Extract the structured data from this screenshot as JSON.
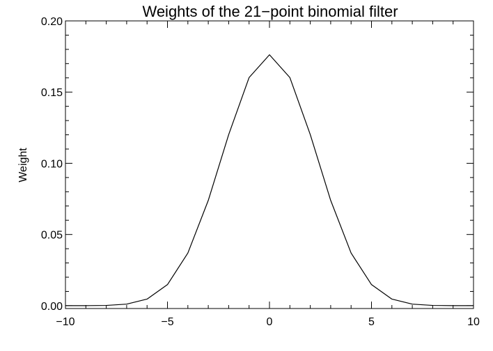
{
  "chart_data": {
    "type": "line",
    "title": "Weights of the 21−point binomial filter",
    "xlabel": "",
    "ylabel": "Weight",
    "xlim": [
      -10,
      10
    ],
    "ylim": [
      -0.002,
      0.2
    ],
    "grid": false,
    "legend": "none",
    "x_ticks": [
      -10,
      -5,
      0,
      5,
      10
    ],
    "x_tick_labels": [
      "−10",
      "−5",
      "0",
      "5",
      "10"
    ],
    "x_minor_step": 1,
    "y_ticks": [
      0.0,
      0.05,
      0.1,
      0.15,
      0.2
    ],
    "y_tick_labels": [
      "0.00",
      "0.05",
      "0.10",
      "0.15",
      "0.20"
    ],
    "y_minor_step": 0.01,
    "colors": {
      "line": "#000000",
      "axes": "#000000",
      "background": "#ffffff"
    },
    "series": [
      {
        "x": [
          -10,
          -9,
          -8,
          -7,
          -6,
          -5,
          -4,
          -3,
          -2,
          -1,
          0,
          1,
          2,
          3,
          4,
          5,
          6,
          7,
          8,
          9,
          10
        ],
        "values": [
          1e-06,
          2e-05,
          0.00018,
          0.00109,
          0.00462,
          0.01479,
          0.03696,
          0.07393,
          0.12013,
          0.16018,
          0.1762,
          0.16018,
          0.12013,
          0.07393,
          0.03696,
          0.01479,
          0.00462,
          0.00109,
          0.00018,
          2e-05,
          1e-06
        ]
      }
    ]
  }
}
